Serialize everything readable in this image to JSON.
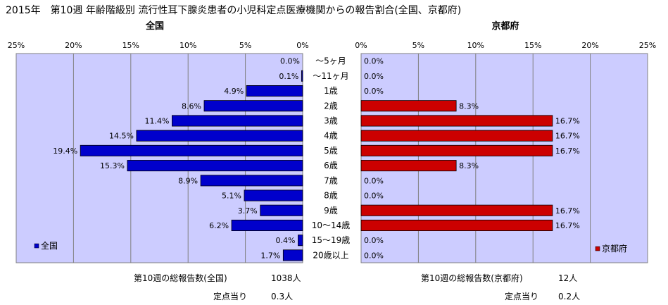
{
  "title": "2015年　第10週 年齢階級別 流行性耳下腺炎患者の小児科定点医療機関からの報告割合(全国、京都府)",
  "chart_data": {
    "type": "bar",
    "categories": [
      "～5ヶ月",
      "～11ヶ月",
      "1歳",
      "2歳",
      "3歳",
      "4歳",
      "5歳",
      "6歳",
      "7歳",
      "8歳",
      "9歳",
      "10～14歳",
      "15～19歳",
      "20歳以上"
    ],
    "xlim": [
      0,
      25
    ],
    "ticks": [
      "0%",
      "5%",
      "10%",
      "15%",
      "20%",
      "25%"
    ],
    "grid": true,
    "series": [
      {
        "name": "全国",
        "panel_title": "全国",
        "color": "#0000cc",
        "direction": "left",
        "legend_placement": "bottom-left",
        "values": [
          0.0,
          0.1,
          4.9,
          8.6,
          11.4,
          14.5,
          19.4,
          15.3,
          8.9,
          5.1,
          3.7,
          6.2,
          0.4,
          1.7
        ],
        "labels": [
          "0.0%",
          "0.1%",
          "4.9%",
          "8.6%",
          "11.4%",
          "14.5%",
          "19.4%",
          "15.3%",
          "8.9%",
          "5.1%",
          "3.7%",
          "6.2%",
          "0.4%",
          "1.7%"
        ]
      },
      {
        "name": "京都府",
        "panel_title": "京都府",
        "color": "#cc0000",
        "direction": "right",
        "legend_placement": "bottom-right",
        "values": [
          0.0,
          0.0,
          0.0,
          8.3,
          16.7,
          16.7,
          16.7,
          8.3,
          0.0,
          0.0,
          16.7,
          16.7,
          0.0,
          0.0
        ],
        "labels": [
          "0.0%",
          "0.0%",
          "0.0%",
          "8.3%",
          "16.7%",
          "16.7%",
          "16.7%",
          "8.3%",
          "0.0%",
          "0.0%",
          "16.7%",
          "16.7%",
          "0.0%",
          "0.0%"
        ]
      }
    ]
  },
  "stats": {
    "national": {
      "total_label": "第10週の総報告数(全国)",
      "total_value": "1038人",
      "per_point_label": "定点当り",
      "per_point_value": "0.3人"
    },
    "kyoto": {
      "total_label": "第10週の総報告数(京都府)",
      "total_value": "12人",
      "per_point_label": "定点当り",
      "per_point_value": "0.2人"
    }
  }
}
